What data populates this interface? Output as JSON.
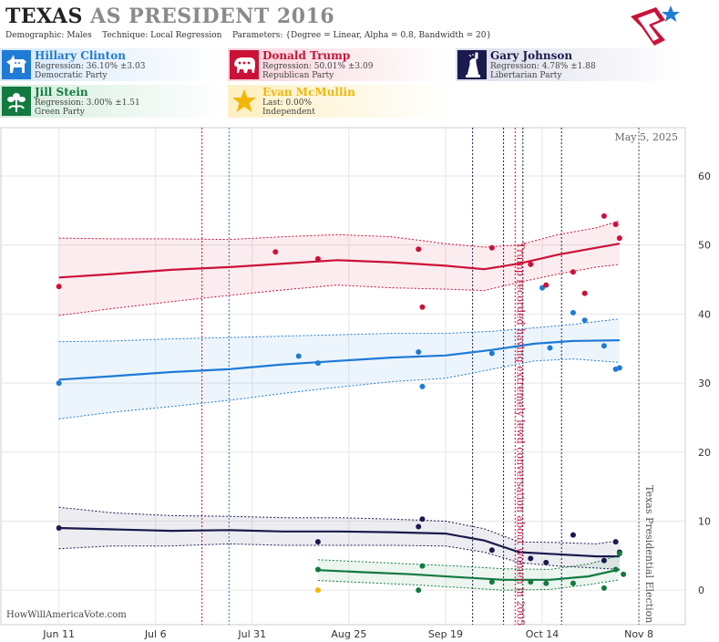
{
  "header": {
    "title_main": "TEXAS",
    "title_sub": " AS PRESIDENT 2016",
    "demographic_label": "Demographic:",
    "demographic_value": "Males",
    "technique_label": "Technique:",
    "technique_value": "Local Regression",
    "parameters_label": "Parameters:",
    "parameters_value": "{Degree = Linear, Alpha = 0.8, Bandwidth = 20}"
  },
  "candidates": [
    {
      "name": "Hillary Clinton",
      "stat": "Regression: 36.10% ±3.03",
      "party": "Democratic Party",
      "color": "#1e7bd6",
      "icon": "donkey-icon"
    },
    {
      "name": "Donald Trump",
      "stat": "Regression: 50.01% ±3.09",
      "party": "Republican Party",
      "color": "#cc1138",
      "icon": "elephant-icon"
    },
    {
      "name": "Gary Johnson",
      "stat": "Regression: 4.78% ±1.88",
      "party": "Libertarian Party",
      "color": "#1a1a4e",
      "icon": "statue-of-liberty-icon"
    },
    {
      "name": "Jill Stein",
      "stat": "Regression: 3.00% ±1.51",
      "party": "Green Party",
      "color": "#127a3f",
      "icon": "flower-icon"
    },
    {
      "name": "Evan McMullin",
      "stat": "Last: 0.00%",
      "party": "Independent",
      "color": "#f2b705",
      "icon": "star-icon"
    }
  ],
  "chart_data": {
    "type": "scatter",
    "date_label": "May 5, 2025",
    "watermark": "HowWillAmericaVote.com",
    "x_ticks": [
      "Jun 11",
      "Jul 6",
      "Jul 31",
      "Aug 25",
      "Sep 19",
      "Oct 14",
      "Nov 8"
    ],
    "x_tick_dates": [
      "2016-06-11",
      "2016-07-06",
      "2016-07-31",
      "2016-08-25",
      "2016-09-19",
      "2016-10-14",
      "2016-11-08"
    ],
    "xlim": [
      "2016-05-27",
      "2016-11-20"
    ],
    "y_ticks": [
      0,
      10,
      20,
      30,
      40,
      50,
      60
    ],
    "ylim": [
      -5,
      67
    ],
    "grid": true,
    "annotations": [
      {
        "date": "2016-10-07",
        "text": "Trump recorded having extremely lewd conversation about women in 2005",
        "color": "#cc1138"
      },
      {
        "date": "2016-11-08",
        "text": "Texas Presidential Election",
        "color": "#555555"
      }
    ],
    "event_lines": [
      {
        "date": "2016-07-18",
        "color": "#cc1138"
      },
      {
        "date": "2016-07-25",
        "color": "#1e7bd6"
      },
      {
        "date": "2016-09-26",
        "color": "#1a1a4e"
      },
      {
        "date": "2016-10-04",
        "color": "#1a1a4e"
      },
      {
        "date": "2016-10-07",
        "color": "#cc1138"
      },
      {
        "date": "2016-10-09",
        "color": "#1a1a4e"
      },
      {
        "date": "2016-10-19",
        "color": "#1a1a4e"
      },
      {
        "date": "2016-11-08",
        "color": "#555555"
      }
    ],
    "series": [
      {
        "name": "Hillary Clinton",
        "color": "#1e7bd6",
        "trend": [
          [
            "2016-06-11",
            30.5
          ],
          [
            "2016-06-25",
            31.0
          ],
          [
            "2016-07-10",
            31.6
          ],
          [
            "2016-07-25",
            32.0
          ],
          [
            "2016-08-08",
            32.7
          ],
          [
            "2016-08-22",
            33.2
          ],
          [
            "2016-09-05",
            33.7
          ],
          [
            "2016-09-19",
            34.0
          ],
          [
            "2016-10-01",
            34.8
          ],
          [
            "2016-10-12",
            35.7
          ],
          [
            "2016-10-22",
            36.1
          ],
          [
            "2016-11-03",
            36.2
          ]
        ],
        "upper": [
          [
            "2016-06-11",
            36.0
          ],
          [
            "2016-06-25",
            36.1
          ],
          [
            "2016-07-10",
            36.4
          ],
          [
            "2016-07-25",
            36.6
          ],
          [
            "2016-08-08",
            36.8
          ],
          [
            "2016-08-22",
            37.0
          ],
          [
            "2016-09-05",
            37.2
          ],
          [
            "2016-09-19",
            37.2
          ],
          [
            "2016-10-01",
            37.5
          ],
          [
            "2016-10-12",
            38.0
          ],
          [
            "2016-10-22",
            38.5
          ],
          [
            "2016-11-03",
            39.3
          ]
        ],
        "lower": [
          [
            "2016-06-11",
            24.8
          ],
          [
            "2016-06-25",
            25.8
          ],
          [
            "2016-07-10",
            26.6
          ],
          [
            "2016-07-25",
            27.5
          ],
          [
            "2016-08-08",
            28.5
          ],
          [
            "2016-08-22",
            29.4
          ],
          [
            "2016-09-05",
            30.2
          ],
          [
            "2016-09-19",
            30.7
          ],
          [
            "2016-10-01",
            32.0
          ],
          [
            "2016-10-12",
            33.2
          ],
          [
            "2016-10-22",
            33.5
          ],
          [
            "2016-11-03",
            33.0
          ]
        ],
        "points": [
          [
            "2016-06-11",
            30.0
          ],
          [
            "2016-08-12",
            33.9
          ],
          [
            "2016-08-17",
            32.9
          ],
          [
            "2016-09-12",
            34.5
          ],
          [
            "2016-09-13",
            29.5
          ],
          [
            "2016-10-01",
            34.3
          ],
          [
            "2016-10-14",
            43.8
          ],
          [
            "2016-10-16",
            35.1
          ],
          [
            "2016-10-22",
            40.2
          ],
          [
            "2016-10-25",
            39.1
          ],
          [
            "2016-10-30",
            35.4
          ],
          [
            "2016-11-02",
            32.0
          ],
          [
            "2016-11-03",
            32.2
          ]
        ]
      },
      {
        "name": "Donald Trump",
        "color": "#cc1138",
        "trend": [
          [
            "2016-06-11",
            45.3
          ],
          [
            "2016-06-25",
            45.8
          ],
          [
            "2016-07-10",
            46.4
          ],
          [
            "2016-07-25",
            46.8
          ],
          [
            "2016-08-08",
            47.3
          ],
          [
            "2016-08-22",
            47.8
          ],
          [
            "2016-09-05",
            47.5
          ],
          [
            "2016-09-19",
            47.0
          ],
          [
            "2016-09-29",
            46.5
          ],
          [
            "2016-10-08",
            47.3
          ],
          [
            "2016-10-18",
            48.6
          ],
          [
            "2016-10-28",
            49.6
          ],
          [
            "2016-11-03",
            50.2
          ]
        ],
        "upper": [
          [
            "2016-06-11",
            51.0
          ],
          [
            "2016-06-25",
            50.9
          ],
          [
            "2016-07-10",
            50.9
          ],
          [
            "2016-07-25",
            50.8
          ],
          [
            "2016-08-08",
            51.2
          ],
          [
            "2016-08-22",
            51.5
          ],
          [
            "2016-09-05",
            51.2
          ],
          [
            "2016-09-19",
            50.2
          ],
          [
            "2016-09-29",
            49.7
          ],
          [
            "2016-10-08",
            50.0
          ],
          [
            "2016-10-18",
            51.5
          ],
          [
            "2016-10-28",
            52.5
          ],
          [
            "2016-11-03",
            53.5
          ]
        ],
        "lower": [
          [
            "2016-06-11",
            39.8
          ],
          [
            "2016-06-25",
            40.8
          ],
          [
            "2016-07-10",
            41.8
          ],
          [
            "2016-07-25",
            42.7
          ],
          [
            "2016-08-08",
            43.5
          ],
          [
            "2016-08-22",
            44.2
          ],
          [
            "2016-09-05",
            43.8
          ],
          [
            "2016-09-19",
            43.6
          ],
          [
            "2016-09-29",
            43.4
          ],
          [
            "2016-10-08",
            44.6
          ],
          [
            "2016-10-18",
            45.8
          ],
          [
            "2016-10-28",
            46.8
          ],
          [
            "2016-11-03",
            47.2
          ]
        ],
        "points": [
          [
            "2016-06-11",
            44.0
          ],
          [
            "2016-08-06",
            49.0
          ],
          [
            "2016-08-17",
            48.0
          ],
          [
            "2016-09-12",
            49.4
          ],
          [
            "2016-09-13",
            41.0
          ],
          [
            "2016-10-01",
            49.6
          ],
          [
            "2016-10-11",
            47.2
          ],
          [
            "2016-10-15",
            44.2
          ],
          [
            "2016-10-22",
            46.1
          ],
          [
            "2016-10-25",
            43.0
          ],
          [
            "2016-10-30",
            54.2
          ],
          [
            "2016-11-02",
            53.0
          ],
          [
            "2016-11-03",
            51.0
          ]
        ]
      },
      {
        "name": "Gary Johnson",
        "color": "#1a1a4e",
        "trend": [
          [
            "2016-06-11",
            9.0
          ],
          [
            "2016-06-25",
            8.8
          ],
          [
            "2016-07-10",
            8.6
          ],
          [
            "2016-07-25",
            8.7
          ],
          [
            "2016-08-08",
            8.5
          ],
          [
            "2016-08-22",
            8.5
          ],
          [
            "2016-09-05",
            8.4
          ],
          [
            "2016-09-19",
            8.2
          ],
          [
            "2016-09-29",
            7.2
          ],
          [
            "2016-10-08",
            5.5
          ],
          [
            "2016-10-18",
            5.2
          ],
          [
            "2016-10-28",
            4.9
          ],
          [
            "2016-11-03",
            4.9
          ]
        ],
        "upper": [
          [
            "2016-06-11",
            12.0
          ],
          [
            "2016-06-25",
            11.2
          ],
          [
            "2016-07-10",
            10.8
          ],
          [
            "2016-07-25",
            10.7
          ],
          [
            "2016-08-08",
            10.5
          ],
          [
            "2016-08-22",
            10.5
          ],
          [
            "2016-09-05",
            10.3
          ],
          [
            "2016-09-19",
            10.0
          ],
          [
            "2016-09-29",
            8.9
          ],
          [
            "2016-10-08",
            7.0
          ],
          [
            "2016-10-18",
            6.9
          ],
          [
            "2016-10-28",
            6.7
          ],
          [
            "2016-11-03",
            7.2
          ]
        ],
        "lower": [
          [
            "2016-06-11",
            6.0
          ],
          [
            "2016-06-25",
            6.4
          ],
          [
            "2016-07-10",
            6.4
          ],
          [
            "2016-07-25",
            6.7
          ],
          [
            "2016-08-08",
            6.5
          ],
          [
            "2016-08-22",
            6.5
          ],
          [
            "2016-09-05",
            6.5
          ],
          [
            "2016-09-19",
            6.4
          ],
          [
            "2016-09-29",
            5.5
          ],
          [
            "2016-10-08",
            4.0
          ],
          [
            "2016-10-18",
            3.5
          ],
          [
            "2016-10-28",
            3.2
          ],
          [
            "2016-11-03",
            3.0
          ]
        ],
        "points": [
          [
            "2016-06-11",
            9.0
          ],
          [
            "2016-08-17",
            7.0
          ],
          [
            "2016-09-12",
            9.2
          ],
          [
            "2016-09-13",
            10.3
          ],
          [
            "2016-10-01",
            5.8
          ],
          [
            "2016-10-11",
            4.6
          ],
          [
            "2016-10-15",
            4.0
          ],
          [
            "2016-10-22",
            8.0
          ],
          [
            "2016-10-30",
            4.3
          ],
          [
            "2016-11-02",
            7.0
          ],
          [
            "2016-11-03",
            5.5
          ]
        ]
      },
      {
        "name": "Jill Stein",
        "color": "#127a3f",
        "trend": [
          [
            "2016-08-17",
            2.9
          ],
          [
            "2016-08-29",
            2.6
          ],
          [
            "2016-09-10",
            2.3
          ],
          [
            "2016-09-22",
            1.9
          ],
          [
            "2016-10-04",
            1.5
          ],
          [
            "2016-10-16",
            1.5
          ],
          [
            "2016-10-26",
            2.0
          ],
          [
            "2016-11-03",
            3.0
          ]
        ],
        "upper": [
          [
            "2016-08-17",
            4.4
          ],
          [
            "2016-08-29",
            4.1
          ],
          [
            "2016-09-10",
            3.8
          ],
          [
            "2016-09-22",
            3.5
          ],
          [
            "2016-10-04",
            3.1
          ],
          [
            "2016-10-16",
            3.0
          ],
          [
            "2016-10-26",
            3.8
          ],
          [
            "2016-11-03",
            5.0
          ]
        ],
        "lower": [
          [
            "2016-08-17",
            1.4
          ],
          [
            "2016-08-29",
            1.1
          ],
          [
            "2016-09-10",
            0.8
          ],
          [
            "2016-09-22",
            0.4
          ],
          [
            "2016-10-04",
            0.0
          ],
          [
            "2016-10-16",
            0.1
          ],
          [
            "2016-10-26",
            0.8
          ],
          [
            "2016-11-03",
            1.5
          ]
        ],
        "points": [
          [
            "2016-08-17",
            3.0
          ],
          [
            "2016-09-12",
            0.0
          ],
          [
            "2016-09-13",
            3.5
          ],
          [
            "2016-10-01",
            1.2
          ],
          [
            "2016-10-11",
            1.2
          ],
          [
            "2016-10-15",
            1.0
          ],
          [
            "2016-10-22",
            1.0
          ],
          [
            "2016-10-30",
            0.3
          ],
          [
            "2016-11-02",
            3.0
          ],
          [
            "2016-11-03",
            5.3
          ],
          [
            "2016-11-04",
            2.3
          ]
        ]
      },
      {
        "name": "Evan McMullin",
        "color": "#f2b705",
        "trend": [],
        "upper": [],
        "lower": [],
        "points": [
          [
            "2016-08-17",
            0.0
          ]
        ]
      }
    ]
  }
}
